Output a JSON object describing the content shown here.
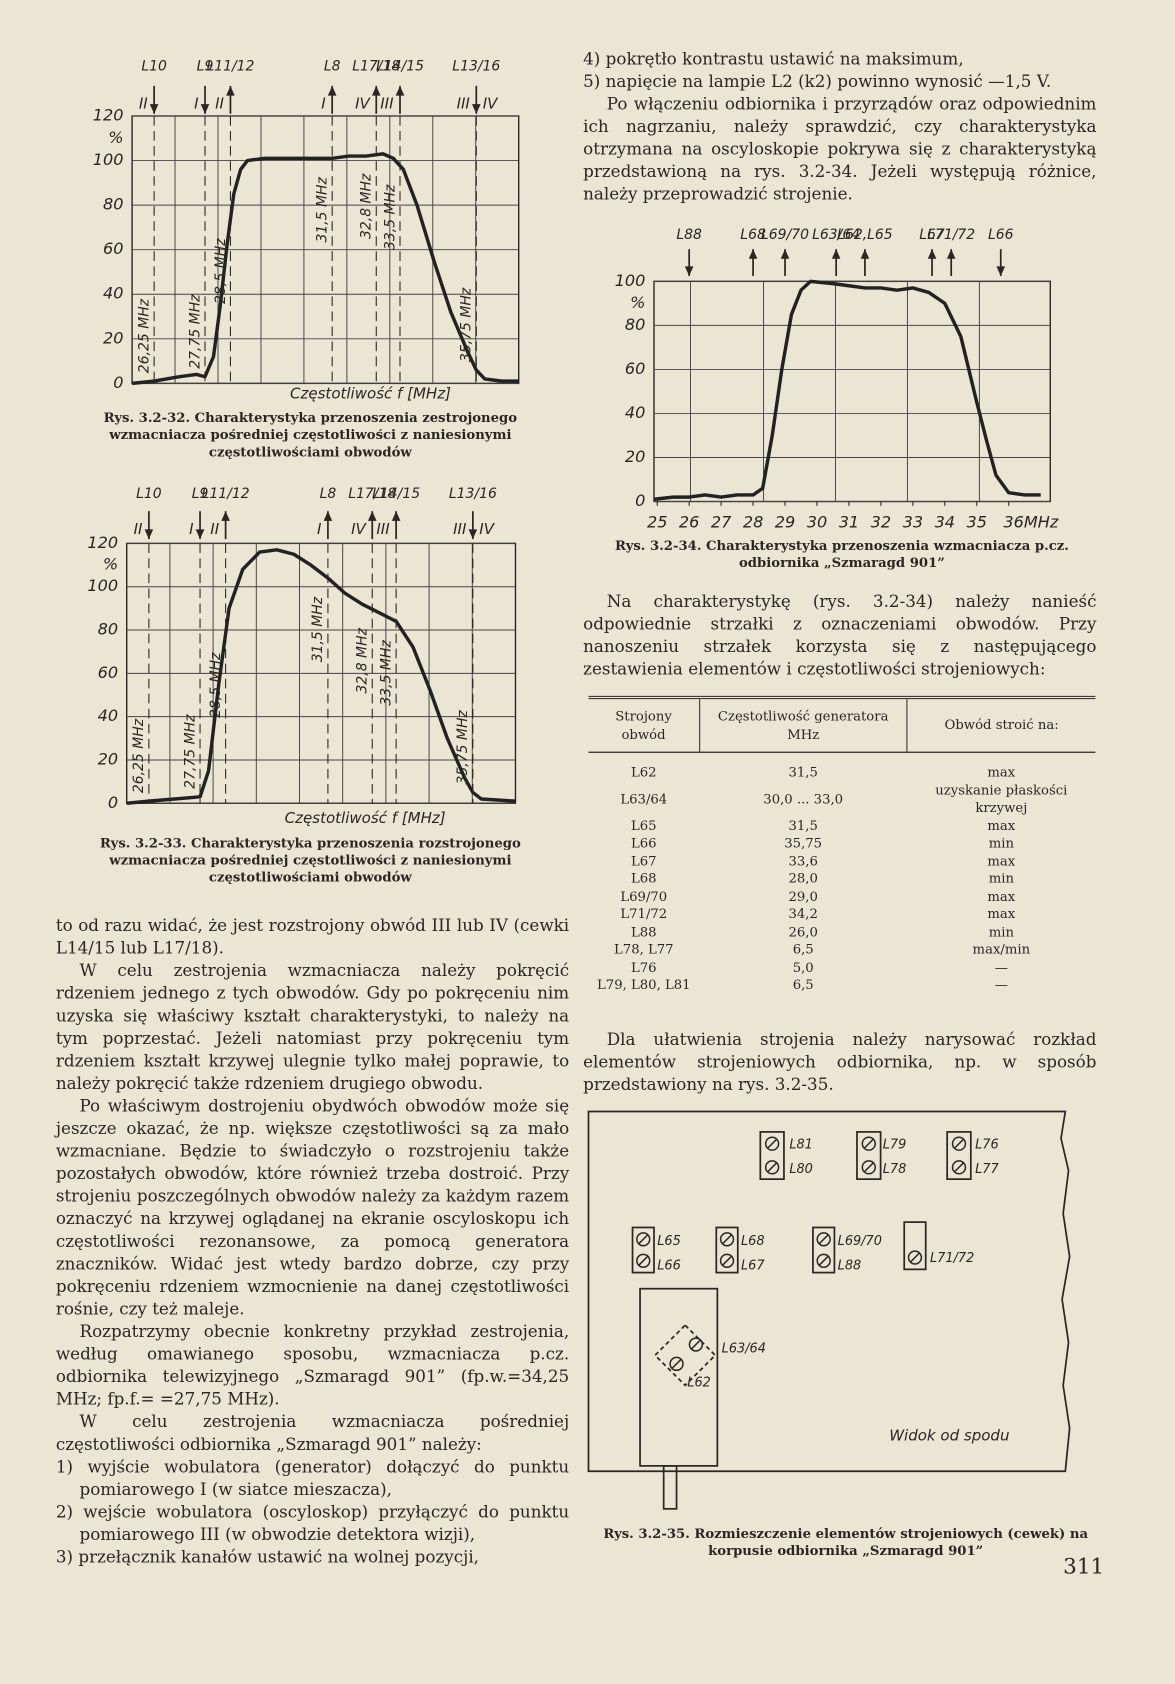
{
  "chart_data": [
    {
      "type": "line",
      "caption": "Rys. 3.2-32. Charakterystyka przenoszenia zestrojonego wzmacniacza pośredniej częstotliwości z naniesionymi częstotliwościami obwodów",
      "x_label": "Częstotliwość f [MHz]",
      "y_label": "%",
      "x": [
        25.6,
        26.25,
        27,
        27.5,
        27.75,
        28,
        28.2,
        28.4,
        28.6,
        28.8,
        29,
        29.5,
        30,
        31,
        31.5,
        32,
        32.5,
        33,
        33.3,
        33.6,
        34,
        34.5,
        35,
        35.5,
        35.75,
        36,
        36.5,
        37
      ],
      "values": [
        0,
        1,
        3,
        4,
        3,
        12,
        35,
        62,
        85,
        96,
        100,
        101,
        101,
        101,
        101,
        102,
        102,
        103,
        101,
        96,
        80,
        55,
        32,
        14,
        6,
        2,
        1,
        1
      ],
      "color": "#222222",
      "xlim": [
        25.6,
        37.0
      ],
      "ylim": [
        0,
        120
      ],
      "yticks": [
        0,
        20,
        40,
        60,
        80,
        100,
        120
      ],
      "grid": true,
      "markers": [
        {
          "label": "L10",
          "circuits": [
            "II"
          ],
          "freq": 26.25,
          "freq_label": "26,25 MHz",
          "arrow": "down"
        },
        {
          "label": "L9",
          "circuits": [
            "I"
          ],
          "freq": 27.75,
          "freq_label": "27,75 MHz",
          "arrow": "down"
        },
        {
          "label": "L11/12",
          "circuits": [
            "II"
          ],
          "freq": 28.5,
          "freq_label": "28,5 MHz",
          "arrow": "up"
        },
        {
          "label": "L8",
          "circuits": [
            "I"
          ],
          "freq": 31.5,
          "freq_label": "31,5 MHz",
          "arrow": "up"
        },
        {
          "label": "L17/18",
          "circuits": [
            "IV"
          ],
          "freq": 32.8,
          "freq_label": "32,8 MHz",
          "arrow": "up"
        },
        {
          "label": "L14/15",
          "circuits": [
            "III"
          ],
          "freq": 33.5,
          "freq_label": "33,5 MHz",
          "arrow": "up"
        },
        {
          "label": "L13/16",
          "circuits": [
            "III",
            "IV"
          ],
          "freq": 35.75,
          "freq_label": "35,75 MHz",
          "arrow": "down"
        }
      ]
    },
    {
      "type": "line",
      "caption": "Rys. 3.2-33. Charakterystyka przenoszenia rozstrojonego wzmacniacza pośredniej częstotliwości z naniesionymi częstotliwościami obwodów",
      "x_label": "Częstotliwość f [MHz]",
      "y_label": "%",
      "x": [
        25.6,
        26.25,
        27,
        27.75,
        28,
        28.3,
        28.6,
        29,
        29.5,
        30,
        30.5,
        31,
        31.5,
        32,
        32.5,
        33,
        33.5,
        34,
        34.5,
        35,
        35.5,
        35.75,
        36,
        37
      ],
      "values": [
        0,
        1,
        2,
        3,
        15,
        55,
        90,
        108,
        116,
        117,
        115,
        110,
        104,
        97,
        92,
        88,
        84,
        72,
        52,
        30,
        12,
        5,
        2,
        1
      ],
      "color": "#222222",
      "xlim": [
        25.6,
        37.0
      ],
      "ylim": [
        0,
        120
      ],
      "yticks": [
        0,
        20,
        40,
        60,
        80,
        100,
        120
      ],
      "grid": true,
      "markers": [
        {
          "label": "L10",
          "circuits": [
            "II"
          ],
          "freq": 26.25,
          "freq_label": "26,25 MHz",
          "arrow": "down"
        },
        {
          "label": "L9",
          "circuits": [
            "I"
          ],
          "freq": 27.75,
          "freq_label": "27,75 MHz",
          "arrow": "down"
        },
        {
          "label": "L11/12",
          "circuits": [
            "II"
          ],
          "freq": 28.5,
          "freq_label": "28,5 MHz",
          "arrow": "up"
        },
        {
          "label": "L8",
          "circuits": [
            "I"
          ],
          "freq": 31.5,
          "freq_label": "31,5 MHz",
          "arrow": "up"
        },
        {
          "label": "L17/18",
          "circuits": [
            "IV"
          ],
          "freq": 32.8,
          "freq_label": "32,8 MHz",
          "arrow": "up"
        },
        {
          "label": "L14/15",
          "circuits": [
            "III"
          ],
          "freq": 33.5,
          "freq_label": "33,5 MHz",
          "arrow": "up"
        },
        {
          "label": "L13/16",
          "circuits": [
            "III",
            "IV"
          ],
          "freq": 35.75,
          "freq_label": "35,75 MHz",
          "arrow": "down"
        }
      ]
    },
    {
      "type": "line",
      "caption": "Rys. 3.2-34. Charakterystyka przenoszenia wzmacniacza p.cz. odbiornika „Szmaragd 901”",
      "y_label": "%",
      "x": [
        24.9,
        25.5,
        26,
        26.5,
        27,
        27.5,
        28,
        28.3,
        28.6,
        28.9,
        29.2,
        29.5,
        29.8,
        30.5,
        31,
        31.5,
        32,
        32.5,
        33,
        33.5,
        34,
        34.5,
        35,
        35.3,
        35.6,
        36,
        36.5,
        37
      ],
      "values": [
        1,
        2,
        2,
        3,
        2,
        3,
        3,
        6,
        30,
        60,
        85,
        96,
        100,
        99,
        98,
        97,
        97,
        96,
        97,
        95,
        90,
        75,
        45,
        28,
        12,
        4,
        3,
        3
      ],
      "color": "#222222",
      "xlim": [
        24.9,
        37.3
      ],
      "ylim": [
        0,
        100
      ],
      "yticks": [
        0,
        20,
        40,
        60,
        80,
        100
      ],
      "xticks": [
        25,
        26,
        27,
        28,
        29,
        30,
        31,
        32,
        33,
        34,
        35,
        {
          "value": 36,
          "label": "36MHz"
        }
      ],
      "grid": true,
      "markers": [
        {
          "label": "L88",
          "circuits": [],
          "freq": 26.0,
          "arrow": "down"
        },
        {
          "label": "L68",
          "circuits": [],
          "freq": 28.0,
          "arrow": "up"
        },
        {
          "label": "L69/70",
          "circuits": [],
          "freq": 29.0,
          "arrow": "up"
        },
        {
          "label": "L63/64",
          "circuits": [],
          "freq": 30.6,
          "arrow": "up"
        },
        {
          "label": "L62,L65",
          "circuits": [],
          "freq": 31.5,
          "arrow": "up"
        },
        {
          "label": "L67",
          "circuits": [],
          "freq": 33.6,
          "arrow": "up"
        },
        {
          "label": "L71/72",
          "circuits": [],
          "freq": 34.2,
          "arrow": "up"
        },
        {
          "label": "L66",
          "circuits": [],
          "freq": 35.75,
          "arrow": "down"
        }
      ]
    }
  ],
  "right_top": [
    "4) pokrętło kontrastu ustawić na maksimum,",
    "5) napięcie na lampie L2 (k2) powinno wynosić —1,5 V.",
    "Po włączeniu odbiornika i przyrządów oraz odpowiednim ich nagrzaniu, należy sprawdzić, czy charakterystyka otrzymana na oscyloskopie pokrywa się z charakterystyką przedstawioną na rys. 3.2-34. Jeżeli występują różnice, należy przeprowadzić strojenie."
  ],
  "right_mid": "Na charakterystykę (rys. 3.2-34) należy nanieść odpowiednie strzałki z oznaczeniami obwodów. Przy nanoszeniu strzałek korzysta się z następującego zestawienia elementów i częstotliwości strojeniowych:",
  "table": {
    "headers": [
      "Strojony obwód",
      "Częstotliwość generatora MHz",
      "Obwód stroić na:"
    ],
    "rows": [
      [
        "L62",
        "31,5",
        "max"
      ],
      [
        "L63/64",
        "30,0 ... 33,0",
        "uzyskanie płaskości krzywej"
      ],
      [
        "L65",
        "31,5",
        "max"
      ],
      [
        "L66",
        "35,75",
        "min"
      ],
      [
        "L67",
        "33,6",
        "max"
      ],
      [
        "L68",
        "28,0",
        "min"
      ],
      [
        "L69/70",
        "29,0",
        "max"
      ],
      [
        "L71/72",
        "34,2",
        "max"
      ],
      [
        "L88",
        "26,0",
        "min"
      ],
      [
        "L78, L77",
        "6,5",
        "max/min"
      ],
      [
        "L76",
        "5,0",
        "—"
      ],
      [
        "L79, L80, L81",
        "6,5",
        "—"
      ]
    ]
  },
  "right_bottom": "Dla ułatwienia strojenia należy narysować rozkład elementów strojeniowych odbiornika, np. w sposób przedstawiony na rys. 3.2-35.",
  "figure_35": {
    "labels": [
      "L81",
      "L80",
      "L79",
      "L78",
      "L76",
      "L77",
      "L65",
      "L66",
      "L68",
      "L67",
      "L69/70",
      "L88",
      "L71/72",
      "L63/64",
      "L62",
      "Widok od spodu"
    ],
    "caption": "Rys. 3.2-35. Rozmieszczenie elementów strojeniowych (cewek) na korpusie odbiornika „Szmaragd 901”"
  },
  "left_text": [
    "to od razu widać, że jest rozstrojony obwód III lub IV (cewki L14/15 lub L17/18).",
    "W celu zestrojenia wzmacniacza należy pokręcić rdzeniem jednego z tych obwodów. Gdy po pokręceniu nim uzyska się właściwy kształt charakterystyki, to należy na tym poprzestać. Jeżeli natomiast przy pokręceniu tym rdzeniem kształt krzywej ulegnie tylko małej poprawie, to należy pokręcić także rdzeniem drugiego obwodu.",
    "Po właściwym dostrojeniu obydwóch obwodów może się jeszcze okazać, że np. większe częstotliwości są za mało wzmacniane. Będzie to świadczyło o rozstrojeniu także pozostałych obwodów, które również trzeba dostroić. Przy strojeniu poszczególnych obwodów należy za każdym razem oznaczyć na krzywej oglądanej na ekranie oscyloskopu ich częstotliwości rezonansowe, za pomocą generatora znaczników. Widać jest wtedy bardzo dobrze, czy przy pokręceniu rdzeniem wzmocnienie na danej częstotliwości rośnie, czy też maleje.",
    "Rozpatrzymy obecnie konkretny przykład zestrojenia, według omawianego sposobu, wzmacniacza p.cz. odbiornika telewizyjnego „Szmaragd 901” (fp.w.=34,25 MHz; fp.f.= =27,75 MHz).",
    "W celu zestrojenia wzmacniacza pośredniej częstotliwości odbiornika „Szmaragd 901” należy:",
    "1) wyjście wobulatora (generator) dołączyć do punktu pomiarowego I (w siatce mieszacza),",
    "2) wejście wobulatora (oscyloskop) przyłączyć do punktu pomiarowego III (w obwodzie detektora wizji),",
    "3) przełącznik kanałów ustawić na wolnej pozycji,"
  ],
  "page_number": "311"
}
